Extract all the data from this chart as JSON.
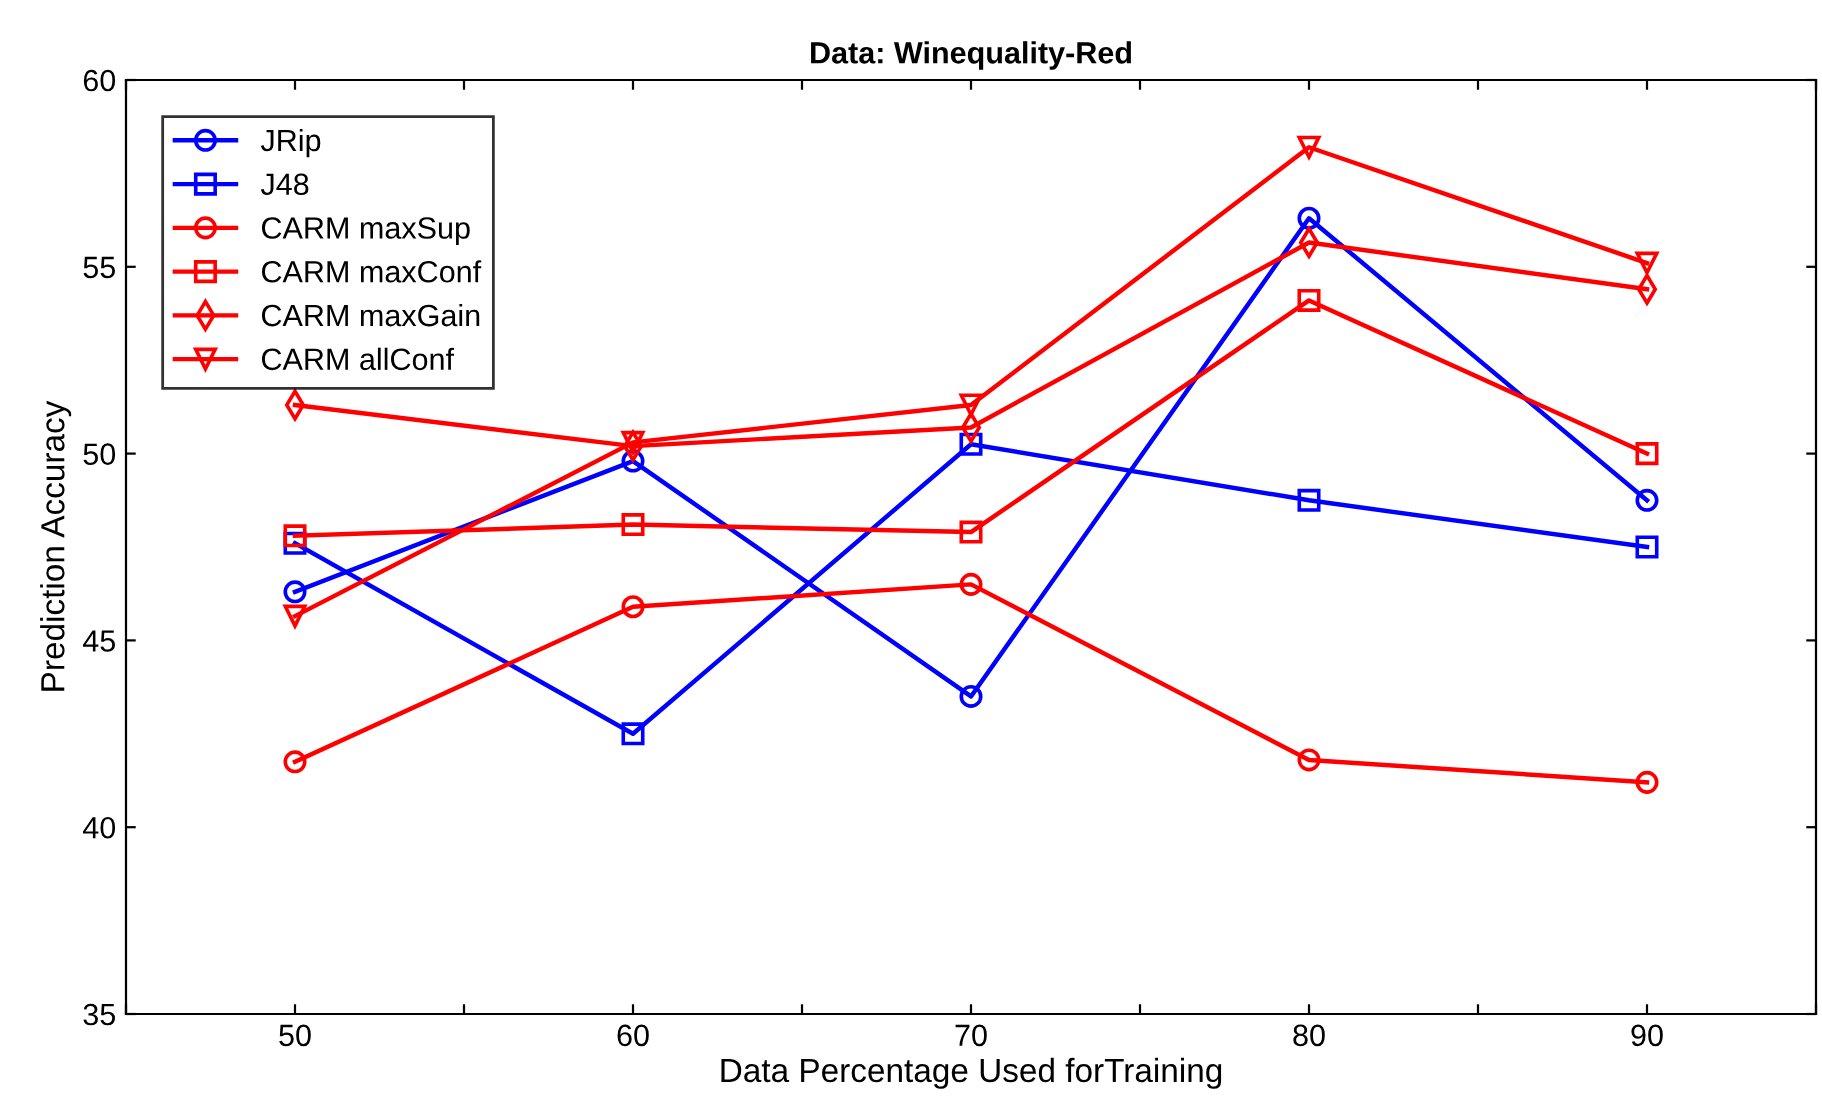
{
  "chart_data": {
    "type": "line",
    "title": "Data: Winequality-Red",
    "xlabel": "Data Percentage Used forTraining",
    "ylabel": "Prediction Accuracy",
    "x": [
      50,
      60,
      70,
      80,
      90
    ],
    "xlim": [
      45,
      95
    ],
    "xticks": [
      {
        "value": 45,
        "label": null
      },
      50,
      {
        "value": 55,
        "label": null
      },
      60,
      {
        "value": 65,
        "label": null
      },
      70,
      {
        "value": 75,
        "label": null
      },
      80,
      {
        "value": 85,
        "label": null
      },
      90,
      {
        "value": 95,
        "label": null
      }
    ],
    "ylim": [
      35,
      60
    ],
    "yticks": [
      35,
      40,
      45,
      50,
      55,
      60
    ],
    "grid": false,
    "legend": "top left",
    "line_style": "solid",
    "series": [
      {
        "name": "JRip",
        "color": "#0000ff",
        "marker": "circle",
        "values": [
          46.3,
          49.8,
          43.5,
          56.3,
          48.75
        ]
      },
      {
        "name": "J48",
        "color": "#0000ff",
        "marker": "square",
        "values": [
          47.6,
          42.5,
          50.25,
          48.75,
          47.5
        ]
      },
      {
        "name": "CARM maxSup",
        "color": "#ff0000",
        "marker": "circle",
        "values": [
          41.75,
          45.9,
          46.5,
          41.8,
          41.2
        ]
      },
      {
        "name": "CARM maxConf",
        "color": "#ff0000",
        "marker": "square",
        "values": [
          47.8,
          48.1,
          47.9,
          54.1,
          50.0
        ]
      },
      {
        "name": "CARM maxGain",
        "color": "#ff0000",
        "marker": "diamond",
        "values": [
          51.3,
          50.2,
          50.7,
          55.65,
          54.4
        ]
      },
      {
        "name": "CARM allConf",
        "color": "#ff0000",
        "marker": "triangle",
        "values": [
          45.65,
          50.3,
          51.3,
          58.2,
          55.1
        ]
      }
    ]
  }
}
